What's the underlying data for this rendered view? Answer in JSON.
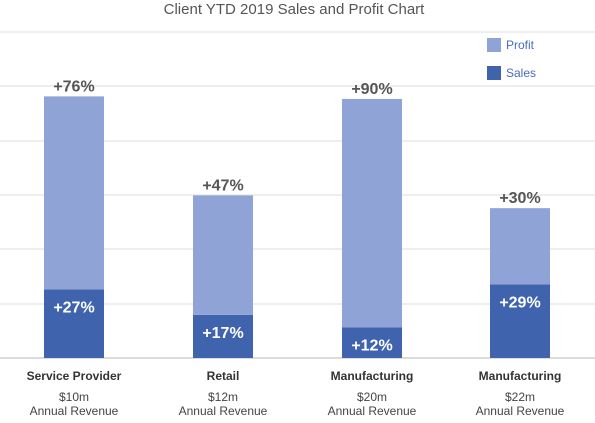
{
  "chart_data": {
    "type": "bar",
    "stacked": true,
    "title": "Client YTD 2019 Sales and Profit Chart",
    "categories": [
      "Service Provider",
      "Retail",
      "Manufacturing",
      "Manufacturing"
    ],
    "category_sublabels": [
      [
        "$10m",
        "Annual Revenue"
      ],
      [
        "$12m",
        "Annual Revenue"
      ],
      [
        "$20m",
        "Annual Revenue"
      ],
      [
        "$22m",
        "Annual Revenue"
      ]
    ],
    "series": [
      {
        "name": "Sales",
        "color": "#3f63ad",
        "values": [
          27,
          17,
          12,
          29
        ],
        "labels": [
          "+27%",
          "+17%",
          "+12%",
          "+29%"
        ]
      },
      {
        "name": "Profit",
        "color": "#8fa3d6",
        "values": [
          76,
          47,
          90,
          30
        ],
        "labels": [
          "+76%",
          "+47%",
          "+90%",
          "+30%"
        ]
      }
    ],
    "legend": {
      "position": "top-right",
      "order": [
        "Profit",
        "Sales"
      ]
    },
    "grid": true
  }
}
